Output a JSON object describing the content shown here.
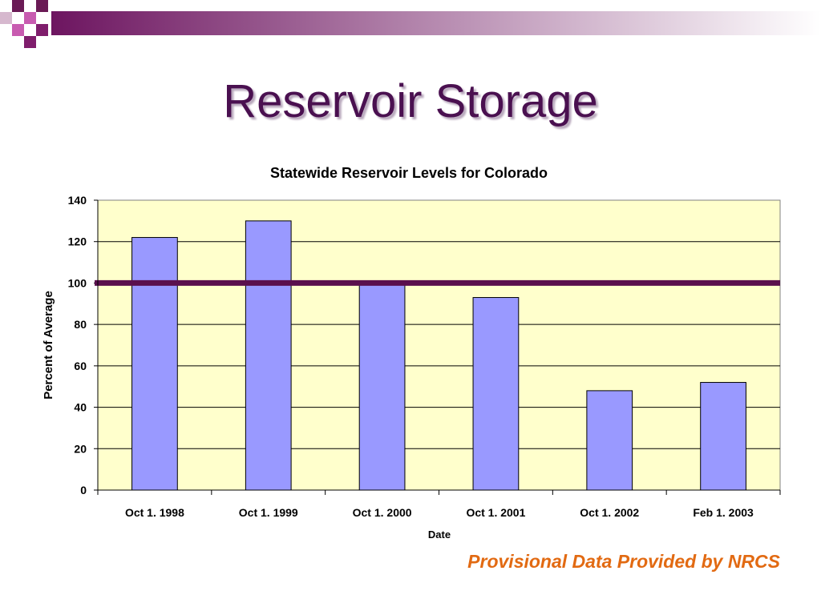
{
  "slide": {
    "title": "Reservoir Storage",
    "footer_note": "Provisional Data Provided by NRCS"
  },
  "colors": {
    "deco_purple": "#7f1d6c",
    "title": "#4a1050",
    "plot_background": "#ffffcc",
    "bar_fill": "#9999ff",
    "reference_line": "#5a0f4d",
    "footer": "#e26a12"
  },
  "chart_data": {
    "type": "bar",
    "title": "Statewide Reservoir Levels for Colorado",
    "xlabel": "Date",
    "ylabel": "Percent of Average",
    "categories": [
      "Oct 1. 1998",
      "Oct 1. 1999",
      "Oct 1. 2000",
      "Oct 1. 2001",
      "Oct 1. 2002",
      "Feb 1. 2003"
    ],
    "values": [
      122,
      130,
      100,
      93,
      48,
      52
    ],
    "ylim": [
      0,
      140
    ],
    "yticks": [
      0,
      20,
      40,
      60,
      80,
      100,
      120,
      140
    ],
    "reference_line": 100,
    "grid": true,
    "legend": false
  }
}
